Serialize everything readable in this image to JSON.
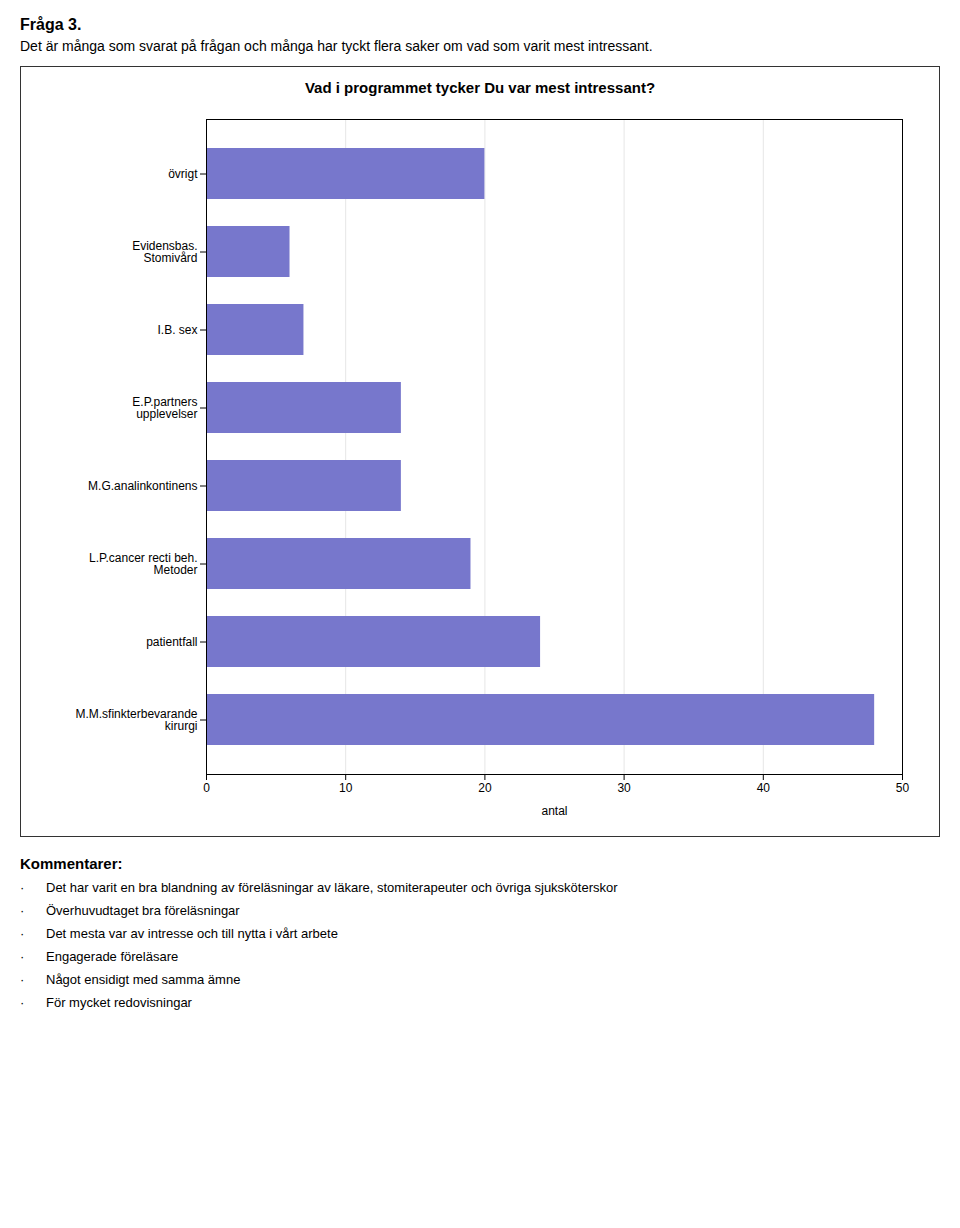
{
  "chart_data": {
    "type": "bar",
    "orientation": "horizontal",
    "heading": "Fråga 3.",
    "subtitle": "Det är många som svarat på frågan och många har tyckt flera saker om vad som varit mest intressant.",
    "title": "Vad i programmet tycker Du var mest intressant?",
    "categories": [
      "M.M.sfinkterbevarande\nkirurgi",
      "patientfall",
      "L.P.cancer recti beh.\nMetoder",
      "M.G.analinkontinens",
      "E.P.partners\nupplevelser",
      "I.B. sex",
      "Evidensbas.\nStomivård",
      "övrigt"
    ],
    "values": [
      48,
      24,
      19,
      14,
      14,
      7,
      6,
      20
    ],
    "color": "#7777cc",
    "xlabel": "antal",
    "xlim": [
      0,
      50
    ],
    "xticks": [
      0,
      10,
      20,
      30,
      40,
      50
    ],
    "grid": true,
    "notes_title": "Kommentarer:",
    "notes": [
      "·      Det har varit en bra blandning av föreläsningar av läkare, stomiterapeuter och övriga sjuksköterskor",
      "·      Överhuvudtaget bra föreläsningar",
      "·      Det mesta var av intresse och till nytta i vårt arbete",
      "·      Engagerade föreläsare",
      "·      Något ensidigt med samma ämne",
      "·      För mycket redovisningar"
    ]
  }
}
